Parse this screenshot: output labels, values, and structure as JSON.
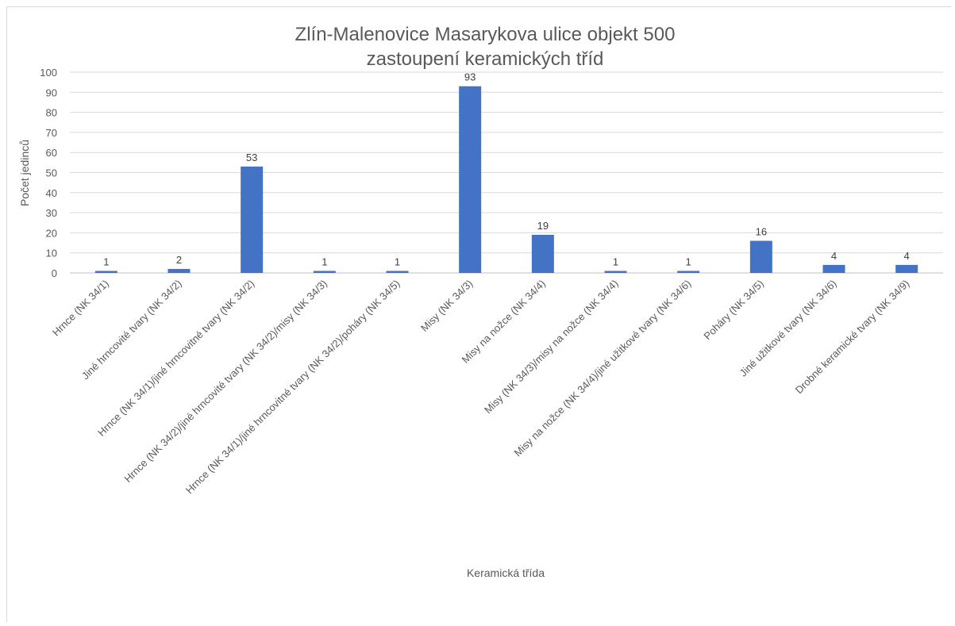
{
  "chart_data": {
    "type": "bar",
    "title_lines": [
      "Zlín-Malenovice Masarykova ulice objekt 500",
      "zastoupení keramických tříd"
    ],
    "xlabel": "Keramická třída",
    "ylabel": "Počet jedinců",
    "ylim": [
      0,
      100
    ],
    "yticks": [
      0,
      10,
      20,
      30,
      40,
      50,
      60,
      70,
      80,
      90,
      100
    ],
    "grid": true,
    "legend": "none",
    "bar_color": "#4472c4",
    "categories": [
      "Hrnce (NK 34/1)",
      "Jiné hrncovité tvary (NK 34/2)",
      "Hrnce (NK 34/1)/jiné hrncovitné tvary (NK 34/2)",
      "Hrnce (NK 34/2)/jiné hrncovité tvary (NK 34/2)/misy (NK 34/3)",
      "Hrnce (NK 34/1)/jiné hrncovitné tvary (NK 34/2)/poháry (NK 34/5)",
      "Misy (NK 34/3)",
      "Misy na nožce (NK 34/4)",
      "Misy (NK 34/3)/misy na nožce (NK 34/4)",
      "Misy na nožce (NK 34/4)/jiné užitkové tvary (NK 34/6)",
      "Poháry (NK 34/5)",
      "Jiné užitkové tvary (NK 34/6)",
      "Drobné keramické tvary (NK 34/9)"
    ],
    "values": [
      1,
      2,
      53,
      1,
      1,
      93,
      19,
      1,
      1,
      16,
      4,
      4
    ]
  }
}
